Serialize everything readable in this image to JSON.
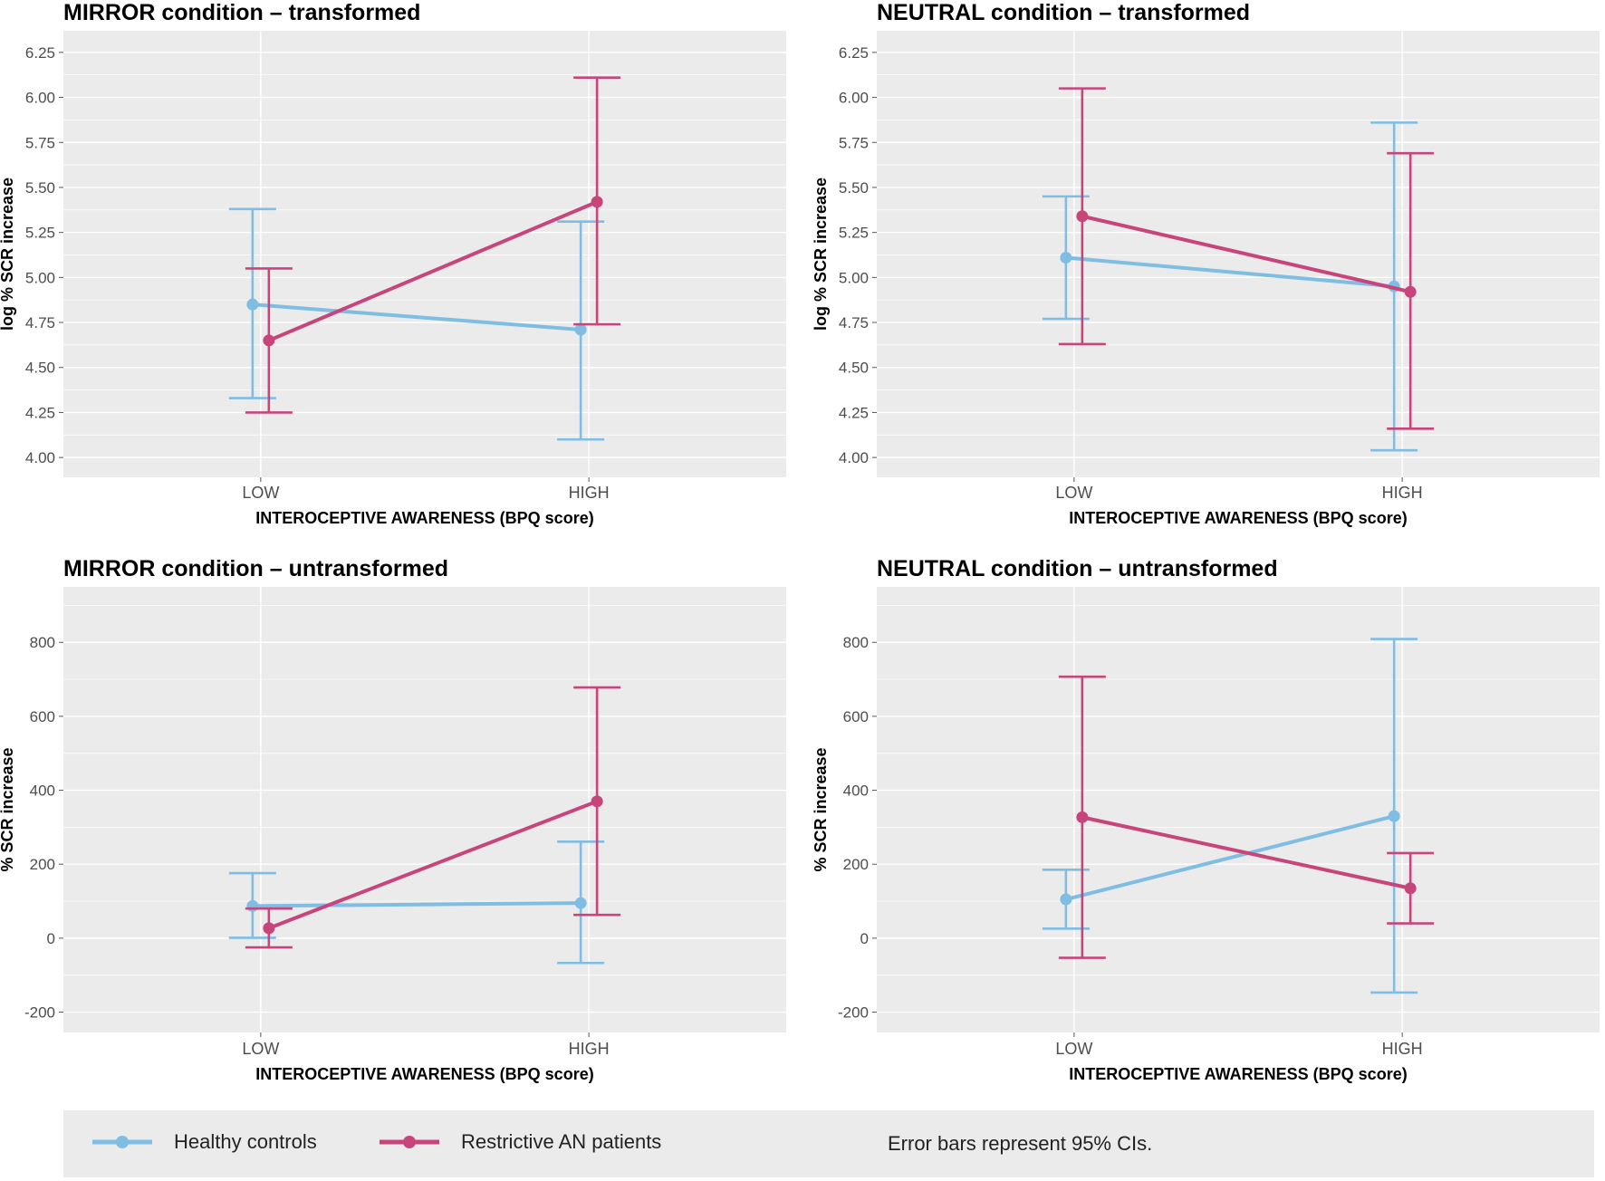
{
  "colors": {
    "controls": "#7fbde3",
    "patients": "#c8457c",
    "panel_bg": "#ebebeb",
    "grid": "#ffffff"
  },
  "legend": {
    "controls_label": "Healthy controls",
    "patients_label": "Restrictive AN patients",
    "note": "Error bars represent 95% CIs."
  },
  "chart_data": [
    {
      "type": "line",
      "title": "MIRROR condition – transformed",
      "xlabel": "INTEROCEPTIVE AWARENESS (BPQ score)",
      "ylabel": "log % SCR increase",
      "categories": [
        "LOW",
        "HIGH"
      ],
      "ylim": [
        3.89,
        6.37
      ],
      "yticks": [
        "4.00",
        "4.25",
        "4.50",
        "4.75",
        "5.00",
        "5.25",
        "5.50",
        "5.75",
        "6.00",
        "6.25"
      ],
      "series": [
        {
          "name": "Healthy controls",
          "values": [
            4.85,
            4.71
          ],
          "lower": [
            4.33,
            4.1
          ],
          "upper": [
            5.38,
            5.31
          ]
        },
        {
          "name": "Restrictive AN patients",
          "values": [
            4.65,
            5.42
          ],
          "lower": [
            4.25,
            4.74
          ],
          "upper": [
            5.05,
            6.11
          ]
        }
      ]
    },
    {
      "type": "line",
      "title": "NEUTRAL condition – transformed",
      "xlabel": "INTEROCEPTIVE AWARENESS (BPQ score)",
      "ylabel": "log % SCR increase",
      "categories": [
        "LOW",
        "HIGH"
      ],
      "ylim": [
        3.89,
        6.37
      ],
      "yticks": [
        "4.00",
        "4.25",
        "4.50",
        "4.75",
        "5.00",
        "5.25",
        "5.50",
        "5.75",
        "6.00",
        "6.25"
      ],
      "series": [
        {
          "name": "Healthy controls",
          "values": [
            5.11,
            4.95
          ],
          "lower": [
            4.77,
            4.04
          ],
          "upper": [
            5.45,
            5.86
          ]
        },
        {
          "name": "Restrictive AN patients",
          "values": [
            5.34,
            4.92
          ],
          "lower": [
            4.63,
            4.16
          ],
          "upper": [
            6.05,
            5.69
          ]
        }
      ]
    },
    {
      "type": "line",
      "title": "MIRROR condition – untransformed",
      "xlabel": "INTEROCEPTIVE AWARENESS (BPQ score)",
      "ylabel": "% SCR increase",
      "categories": [
        "LOW",
        "HIGH"
      ],
      "ylim": [
        -255,
        950
      ],
      "yticks": [
        "-200",
        "0",
        "200",
        "400",
        "600",
        "800"
      ],
      "series": [
        {
          "name": "Healthy controls",
          "values": [
            87,
            95
          ],
          "lower": [
            1,
            -67
          ],
          "upper": [
            176,
            261
          ]
        },
        {
          "name": "Restrictive AN patients",
          "values": [
            27,
            370
          ],
          "lower": [
            -25,
            63
          ],
          "upper": [
            80,
            678
          ]
        }
      ]
    },
    {
      "type": "line",
      "title": "NEUTRAL condition – untransformed",
      "xlabel": "INTEROCEPTIVE AWARENESS (BPQ score)",
      "ylabel": "% SCR increase",
      "categories": [
        "LOW",
        "HIGH"
      ],
      "ylim": [
        -255,
        950
      ],
      "yticks": [
        "-200",
        "0",
        "200",
        "400",
        "600",
        "800"
      ],
      "series": [
        {
          "name": "Healthy controls",
          "values": [
            105,
            330
          ],
          "lower": [
            26,
            -147
          ],
          "upper": [
            185,
            809
          ]
        },
        {
          "name": "Restrictive AN patients",
          "values": [
            327,
            135
          ],
          "lower": [
            -53,
            40
          ],
          "upper": [
            707,
            230
          ]
        }
      ]
    }
  ]
}
